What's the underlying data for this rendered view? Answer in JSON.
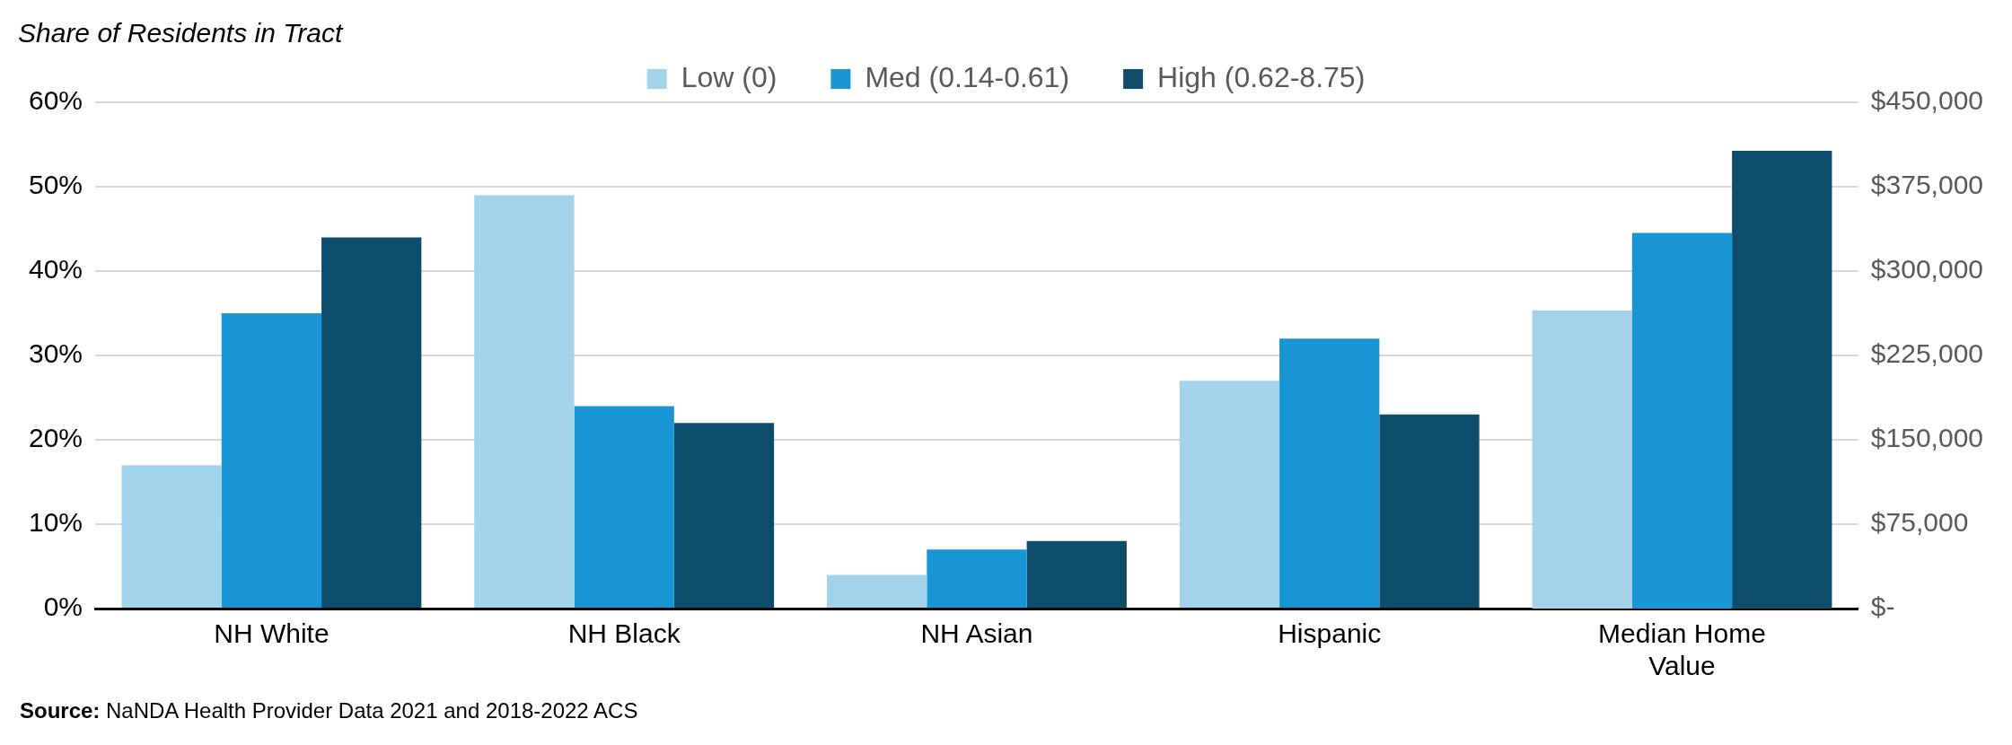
{
  "chart_data": {
    "type": "bar",
    "ylabel": "Share of Residents in Tract",
    "categories": [
      "NH White",
      "NH Black",
      "NH Asian",
      "Hispanic",
      "Median Home Value"
    ],
    "series": [
      {
        "name": "Low (0)",
        "color": "#a3d3ea",
        "values": [
          17,
          49,
          4,
          27,
          null
        ]
      },
      {
        "name": "Med (0.14-0.61)",
        "color": "#1895d3",
        "values": [
          35,
          24,
          7,
          32,
          null
        ]
      },
      {
        "name": "High (0.62-8.75)",
        "color": "#0d4c6b",
        "values": [
          44,
          22,
          8,
          23,
          null
        ]
      },
      {
        "color": "#a3d3ea",
        "axis": "y2",
        "values": [
          null,
          null,
          null,
          null,
          265000
        ]
      },
      {
        "color": "#1895d3",
        "axis": "y2",
        "values": [
          null,
          null,
          null,
          null,
          334000
        ]
      },
      {
        "color": "#0d4c6b",
        "axis": "y2",
        "values": [
          null,
          null,
          null,
          null,
          407000
        ]
      }
    ],
    "ylim": [
      0,
      60
    ],
    "yticks": [
      {
        "value": 0,
        "label": "0%"
      },
      {
        "value": 10,
        "label": "10%"
      },
      {
        "value": 20,
        "label": "20%"
      },
      {
        "value": 30,
        "label": "30%"
      },
      {
        "value": 40,
        "label": "40%"
      },
      {
        "value": 50,
        "label": "50%"
      },
      {
        "value": 60,
        "label": "60%"
      }
    ],
    "y2lim": [
      0,
      450000
    ],
    "y2ticks": [
      {
        "value": 0,
        "label": "$-"
      },
      {
        "value": 75000,
        "label": "$75,000"
      },
      {
        "value": 150000,
        "label": "$150,000"
      },
      {
        "value": 225000,
        "label": "$225,000"
      },
      {
        "value": 300000,
        "label": "$300,000"
      },
      {
        "value": 375000,
        "label": "$375,000"
      },
      {
        "value": 450000,
        "label": "$450,000"
      }
    ],
    "grid": "y",
    "legend": "top",
    "annotations": [
      "Source: NaNDA Health Provider Data 2021 and 2018-2022 ACS"
    ]
  }
}
